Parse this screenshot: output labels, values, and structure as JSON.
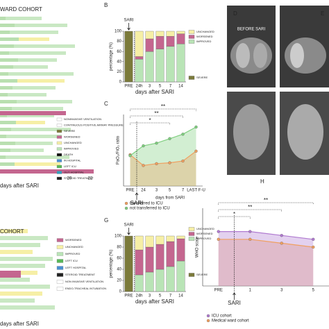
{
  "panels": {
    "letters": [
      "B",
      "C",
      "D",
      "E",
      "G",
      "H"
    ],
    "ct_label": "BEFORE SARI"
  },
  "left_top": {
    "title": "WARD COHORT",
    "xlabel": "days after SARI",
    "xticks": [
      20,
      22
    ],
    "legend": [
      "NONINVASIVE VENTILATION",
      "CONTINUOUS POSITIVE AIRWAY PRESSURE",
      "SEVERE",
      "WORSENED",
      "UNCHANGED",
      "IMPROVED",
      "DEATH",
      "IN HOSPITAL",
      "LEFT ICU",
      "OUT HOSPITAL",
      "STEROID TREATMENT"
    ]
  },
  "left_bottom": {
    "title": "COHORT",
    "xlabel": "days after SARI",
    "legend": [
      "WORSENED",
      "UNCHANGED",
      "IMPROVED",
      "LEFT ICU",
      "LEFT HOSPITAL",
      "STEROID TREATMENT",
      "NON INVASIVE VENTILATION",
      "ENDO-TRACHEAL INTUBATION"
    ]
  },
  "chart_data": [
    {
      "type": "stacked-bar",
      "annotation": "SARI",
      "ylabel": "percentage (%)",
      "xlabel": "days after SARI",
      "categories": [
        "PRE",
        "24h",
        "3",
        "5",
        "7",
        "14"
      ],
      "ylim": [
        0,
        100
      ],
      "yticks": [
        0,
        20,
        40,
        60,
        80,
        100
      ],
      "series": [
        {
          "name": "SEVERE",
          "color": "#7b7a3a",
          "values": [
            100,
            null,
            null,
            null,
            null,
            null
          ]
        },
        {
          "name": "IMPROVED",
          "color": "#b9e4b6",
          "values": [
            null,
            45,
            60,
            65,
            70,
            75
          ]
        },
        {
          "name": "WORSENED",
          "color": "#c4668f",
          "values": [
            null,
            5,
            25,
            25,
            20,
            20
          ]
        },
        {
          "name": "UNCHANGED",
          "color": "#f6efa6",
          "values": [
            null,
            50,
            15,
            10,
            10,
            5
          ]
        }
      ]
    },
    {
      "type": "line",
      "annotation": "SARI",
      "ylabel": "PaO₂/FiO₂ ratio",
      "xlabel": "days from SARI",
      "categories": [
        "PRE",
        "24",
        "3",
        "5",
        "7",
        "LAST F-U"
      ],
      "ylim": [
        0,
        400
      ],
      "significance": [
        "**",
        "**",
        "*"
      ],
      "series": [
        {
          "name": "transferred to ICU",
          "color": "#f0a060",
          "values": [
            175,
            115,
            125,
            130,
            140,
            195
          ]
        },
        {
          "name": "not transferred to ICU",
          "color": "#7fcf7f",
          "values": [
            170,
            225,
            240,
            265,
            290,
            330
          ]
        }
      ]
    },
    {
      "type": "stacked-bar",
      "annotation": "SARI",
      "ylabel": "percentage (%)",
      "xlabel": "days after SARI",
      "categories": [
        "PRE",
        "24h",
        "3",
        "5",
        "7",
        "14"
      ],
      "ylim": [
        0,
        100
      ],
      "yticks": [
        0,
        20,
        40,
        60,
        80,
        100
      ],
      "series": [
        {
          "name": "SEVERE",
          "color": "#7b7a3a",
          "values": [
            100,
            null,
            null,
            null,
            null,
            null
          ]
        },
        {
          "name": "IMPROVED",
          "color": "#b9e4b6",
          "values": [
            null,
            30,
            35,
            40,
            45,
            55
          ]
        },
        {
          "name": "WORSENED",
          "color": "#c4668f",
          "values": [
            null,
            45,
            45,
            45,
            45,
            40
          ]
        },
        {
          "name": "UNCHANGED",
          "color": "#f6efa6",
          "values": [
            null,
            25,
            20,
            15,
            10,
            5
          ]
        }
      ]
    },
    {
      "type": "line",
      "annotation": "SARI",
      "ylabel": "WHO scale",
      "categories": [
        "PRE",
        "1",
        "3",
        "5"
      ],
      "ylim": [
        0,
        10
      ],
      "significance": [
        "**",
        "**",
        "*"
      ],
      "series": [
        {
          "name": "ICU cohort",
          "color": "#b07ad0",
          "values": [
            7,
            7,
            6.5,
            6
          ]
        },
        {
          "name": "Medical ward cohort",
          "color": "#f0a060",
          "values": [
            6,
            6,
            5.5,
            5
          ]
        }
      ]
    }
  ]
}
